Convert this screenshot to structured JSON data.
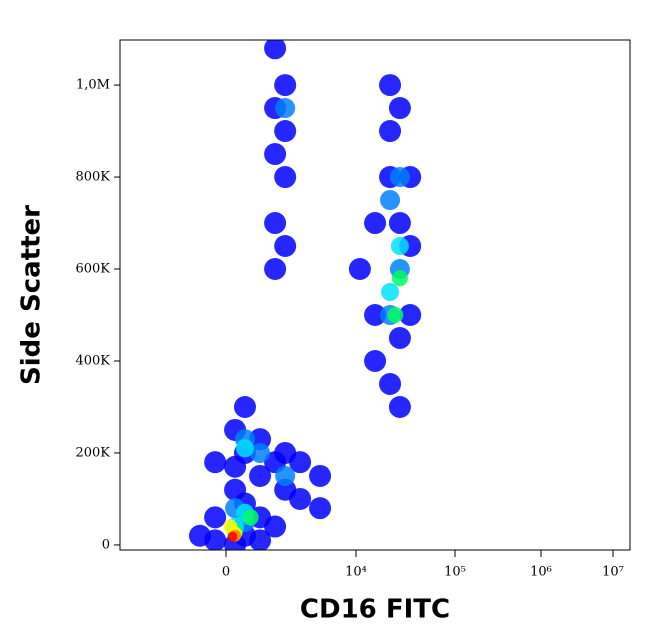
{
  "chart_data": {
    "type": "scatter",
    "x_label": "CD16 FITC",
    "y_label": "Side Scatter",
    "x": [
      -637,
      -253,
      -253,
      211,
      452,
      452,
      869,
      869,
      1390,
      211,
      211,
      452,
      452,
      869,
      869,
      1390,
      1830,
      1830,
      2670,
      2670,
      4320,
      4320,
      211,
      -253,
      1390,
      1390,
      1830,
      1390,
      1830,
      1390,
      1830,
      1390,
      1830,
      10950,
      15600,
      15600,
      22100,
      22100,
      27800,
      22100,
      27800,
      35300,
      22100,
      27800,
      35300,
      15600,
      35300,
      27800,
      22100,
      27800,
      27800,
      22100,
      452,
      869,
      1830,
      211,
      452,
      1830,
      27800,
      22100,
      452,
      452,
      211,
      27800,
      25000,
      211,
      600,
      211,
      100,
      211,
      150
    ],
    "y": [
      20000,
      60000,
      10000,
      120000,
      90000,
      20000,
      60000,
      10000,
      40000,
      0,
      250000,
      300000,
      200000,
      230000,
      150000,
      180000,
      200000,
      120000,
      180000,
      100000,
      150000,
      80000,
      170000,
      180000,
      1080000,
      950000,
      1000000,
      850000,
      800000,
      700000,
      650000,
      600000,
      900000,
      600000,
      700000,
      500000,
      900000,
      1000000,
      950000,
      800000,
      700000,
      800000,
      350000,
      300000,
      500000,
      400000,
      650000,
      450000,
      750000,
      600000,
      800000,
      500000,
      230000,
      200000,
      150000,
      80000,
      50000,
      950000,
      650000,
      550000,
      210000,
      70000,
      40000,
      580000,
      500000,
      30000,
      60000,
      25000,
      40000,
      20000,
      18000
    ],
    "colors": [
      "#0000ff",
      "#0000ff",
      "#0000ff",
      "#0000ff",
      "#0000ff",
      "#0000ff",
      "#0000ff",
      "#0000ff",
      "#0000ff",
      "#0000ff",
      "#0000ff",
      "#0000ff",
      "#0000ff",
      "#0000ff",
      "#0000ff",
      "#0000ff",
      "#0000ff",
      "#0000ff",
      "#0000ff",
      "#0000ff",
      "#0000ff",
      "#0000ff",
      "#0000ff",
      "#0000ff",
      "#0000ff",
      "#0000ff",
      "#0000ff",
      "#0000ff",
      "#0000ff",
      "#0000ff",
      "#0000ff",
      "#0000ff",
      "#0000ff",
      "#0000ff",
      "#0000ff",
      "#0000ff",
      "#0000ff",
      "#0000ff",
      "#0000ff",
      "#0000ff",
      "#0000ff",
      "#0000ff",
      "#0000ff",
      "#0000ff",
      "#0000ff",
      "#0000ff",
      "#0000ff",
      "#0000ff",
      "#0080ff",
      "#0080ff",
      "#0080ff",
      "#0080ff",
      "#0080ff",
      "#0080ff",
      "#0080ff",
      "#0080ff",
      "#0080ff",
      "#0080ff",
      "#00e0ff",
      "#00e0ff",
      "#00e0ff",
      "#00e0ff",
      "#00e0ff",
      "#00ff60",
      "#00ff60",
      "#00ff60",
      "#00ff60",
      "#ffff00",
      "#ffff00",
      "#ff8000",
      "#ff0000"
    ],
    "xlim": [
      -5800,
      17000000
    ],
    "xticks": [
      0,
      {
        "value": 10000,
        "label": "10⁴"
      },
      {
        "value": 100000,
        "label": "10⁵"
      },
      {
        "value": 1000000,
        "label": "10⁶"
      },
      {
        "value": 10000000,
        "label": "10⁷"
      }
    ],
    "ylim": [
      -11000,
      1098000
    ],
    "yticks": [
      0,
      {
        "value": 200000,
        "label": "200K"
      },
      {
        "value": 400000,
        "label": "400K"
      },
      {
        "value": 600000,
        "label": "600K"
      },
      {
        "value": 800000,
        "label": "800K"
      },
      {
        "value": 1000000,
        "label": "1,0M"
      }
    ],
    "xscale": "biexponential"
  }
}
